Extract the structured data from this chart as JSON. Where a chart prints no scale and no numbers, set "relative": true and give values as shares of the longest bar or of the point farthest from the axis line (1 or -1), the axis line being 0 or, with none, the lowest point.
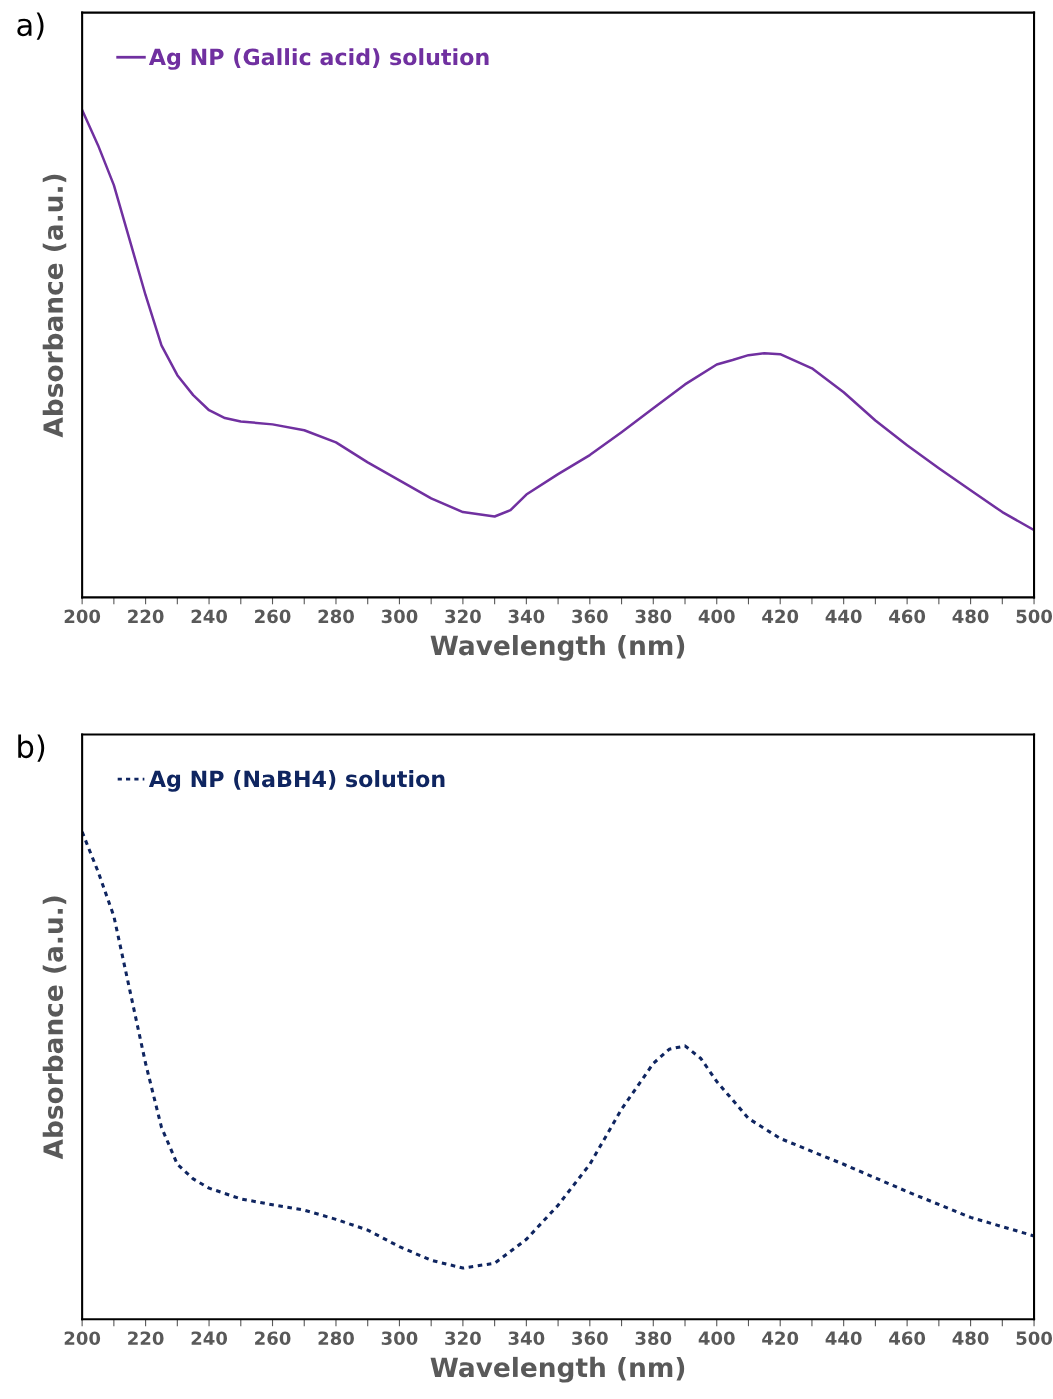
{
  "chart_data": [
    {
      "type": "line",
      "relative": true,
      "xlabel": "Wavelength (nm)",
      "ylabel": "Absorbance (a.u.)",
      "annotations": [
        "a)"
      ],
      "legend": "top left",
      "grid": false,
      "line_style": "solid",
      "xlim": [
        200,
        500
      ],
      "xticks": [
        200,
        {
          "value": 210,
          "label": null
        },
        220,
        {
          "value": 230,
          "label": null
        },
        240,
        {
          "value": 250,
          "label": null
        },
        260,
        {
          "value": 270,
          "label": null
        },
        280,
        {
          "value": 290,
          "label": null
        },
        300,
        {
          "value": 310,
          "label": null
        },
        320,
        {
          "value": 330,
          "label": null
        },
        340,
        {
          "value": 350,
          "label": null
        },
        360,
        {
          "value": 370,
          "label": null
        },
        380,
        {
          "value": 390,
          "label": null
        },
        400,
        {
          "value": 410,
          "label": null
        },
        420,
        {
          "value": 430,
          "label": null
        },
        440,
        {
          "value": 450,
          "label": null
        },
        460,
        {
          "value": 470,
          "label": null
        },
        480,
        {
          "value": 490,
          "label": null
        },
        500
      ],
      "x": [
        200,
        205,
        210,
        215,
        220,
        225,
        230,
        235,
        240,
        245,
        250,
        260,
        270,
        280,
        290,
        300,
        310,
        320,
        330,
        335,
        340,
        350,
        360,
        370,
        380,
        390,
        400,
        405,
        410,
        415,
        420,
        430,
        440,
        450,
        460,
        470,
        480,
        490,
        500
      ],
      "series": [
        {
          "name": "Ag NP (Gallic acid) solution",
          "color": "#7030a0",
          "values": [
            1,
            0.928,
            0.846,
            0.733,
            0.62,
            0.517,
            0.456,
            0.415,
            0.384,
            0.368,
            0.361,
            0.355,
            0.343,
            0.318,
            0.277,
            0.24,
            0.203,
            0.175,
            0.166,
            0.179,
            0.211,
            0.253,
            0.292,
            0.339,
            0.388,
            0.437,
            0.478,
            0.487,
            0.497,
            0.501,
            0.499,
            0.47,
            0.421,
            0.363,
            0.312,
            0.265,
            0.22,
            0.175,
            0.138
          ]
        }
      ]
    },
    {
      "type": "line",
      "relative": true,
      "xlabel": "Wavelength (nm)",
      "ylabel": "Absorbance (a.u.)",
      "annotations": [
        "b)"
      ],
      "legend": "top left",
      "grid": false,
      "line_style": "dashed",
      "xlim": [
        200,
        500
      ],
      "xticks": [
        200,
        {
          "value": 210,
          "label": null
        },
        220,
        {
          "value": 230,
          "label": null
        },
        240,
        {
          "value": 250,
          "label": null
        },
        260,
        {
          "value": 270,
          "label": null
        },
        280,
        {
          "value": 290,
          "label": null
        },
        300,
        {
          "value": 310,
          "label": null
        },
        320,
        {
          "value": 330,
          "label": null
        },
        340,
        {
          "value": 350,
          "label": null
        },
        360,
        {
          "value": 370,
          "label": null
        },
        380,
        {
          "value": 390,
          "label": null
        },
        400,
        {
          "value": 410,
          "label": null
        },
        420,
        {
          "value": 430,
          "label": null
        },
        440,
        {
          "value": 450,
          "label": null
        },
        460,
        {
          "value": 470,
          "label": null
        },
        480,
        {
          "value": 490,
          "label": null
        },
        500
      ],
      "x": [
        200,
        205,
        210,
        215,
        220,
        225,
        230,
        235,
        240,
        250,
        260,
        270,
        280,
        290,
        300,
        310,
        320,
        330,
        340,
        350,
        360,
        370,
        380,
        385,
        390,
        395,
        400,
        410,
        420,
        440,
        460,
        480,
        500
      ],
      "series": [
        {
          "name": "Ag NP (NaBH4) solution",
          "color": "#0f2560",
          "values": [
            1,
            0.919,
            0.827,
            0.676,
            0.525,
            0.394,
            0.318,
            0.288,
            0.269,
            0.247,
            0.235,
            0.224,
            0.205,
            0.183,
            0.149,
            0.121,
            0.105,
            0.115,
            0.164,
            0.234,
            0.318,
            0.431,
            0.525,
            0.554,
            0.561,
            0.535,
            0.488,
            0.412,
            0.371,
            0.318,
            0.262,
            0.209,
            0.171
          ]
        }
      ]
    }
  ]
}
